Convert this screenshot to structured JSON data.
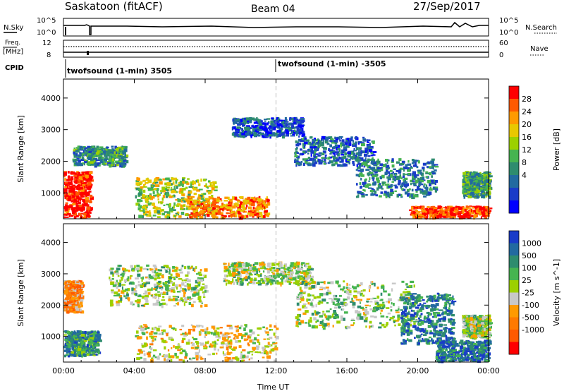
{
  "header": {
    "title": "Saskatoon (fitACF)",
    "beam": "Beam 04",
    "date": "27/Sep/2017"
  },
  "top_panels": {
    "nsky_label": "N.Sky",
    "nsky_ticks": [
      "10^5",
      "10^0"
    ],
    "nsearch_label": "N.Search",
    "nsearch_ticks": [
      "10^5",
      "10^0"
    ],
    "freq_label_1": "Freq.",
    "freq_label_2": "[MHz]",
    "freq_ticks": [
      "12",
      "8"
    ],
    "nave_label": "Nave",
    "nave_ticks": [
      "60",
      "0"
    ],
    "cpid_label": "CPID",
    "cpid_segments": [
      "twofsound (1-min) 3505",
      "twofsound (1-min) -3505"
    ]
  },
  "chart_data": [
    {
      "type": "heatmap",
      "name": "power",
      "ylabel": "Slant Range [km]",
      "xlabel": "Time UT",
      "x_ticks": [
        "00:00",
        "04:00",
        "08:00",
        "12:00",
        "16:00",
        "20:00",
        "00:00"
      ],
      "y_ticks": [
        "1000",
        "2000",
        "3000",
        "4000"
      ],
      "ylim": [
        180,
        4600
      ],
      "colorbar_label": "Power [dB]",
      "colorbar_ticks": [
        "28",
        "24",
        "20",
        "16",
        "12",
        "8",
        "4"
      ],
      "colorbar_colors": [
        "#ff0000",
        "#ff5a00",
        "#ff9a00",
        "#e8c800",
        "#9cd000",
        "#46b450",
        "#2e8c6e",
        "#226aa0",
        "#1a3cc8",
        "#0000ff"
      ],
      "bands": [
        {
          "t0": 0.0,
          "t1": 1.5,
          "r0": 250,
          "r1": 1700,
          "level": 0.95
        },
        {
          "t0": 0.5,
          "t1": 3.5,
          "r0": 1900,
          "r1": 2500,
          "level": 0.35
        },
        {
          "t0": 4.0,
          "t1": 8.5,
          "r0": 250,
          "r1": 1500,
          "level": 0.55
        },
        {
          "t0": 7.0,
          "t1": 11.5,
          "r0": 250,
          "r1": 900,
          "level": 0.8
        },
        {
          "t0": 9.5,
          "t1": 13.5,
          "r0": 2800,
          "r1": 3400,
          "level": 0.2
        },
        {
          "t0": 13.0,
          "t1": 17.5,
          "r0": 1900,
          "r1": 2800,
          "level": 0.25
        },
        {
          "t0": 16.5,
          "t1": 21.0,
          "r0": 900,
          "r1": 2100,
          "level": 0.3
        },
        {
          "t0": 19.5,
          "t1": 24.0,
          "r0": 250,
          "r1": 600,
          "level": 0.9
        },
        {
          "t0": 22.5,
          "t1": 24.0,
          "r0": 900,
          "r1": 1700,
          "level": 0.4
        }
      ]
    },
    {
      "type": "heatmap",
      "name": "velocity",
      "ylabel": "Slant Range [km]",
      "xlabel": "Time UT",
      "x_ticks": [
        "00:00",
        "04:00",
        "08:00",
        "12:00",
        "16:00",
        "20:00",
        "00:00"
      ],
      "y_ticks": [
        "1000",
        "2000",
        "3000",
        "4000"
      ],
      "ylim": [
        180,
        4600
      ],
      "colorbar_label": "Velocity [m s^-1]",
      "colorbar_ticks": [
        "1000",
        "500",
        "100",
        "25",
        "-25",
        "-100",
        "-500",
        "-1000"
      ],
      "colorbar_colors": [
        "#1a3cc8",
        "#226aa0",
        "#2e8c6e",
        "#46b450",
        "#9cd000",
        "#c8c8c8",
        "#ff9a00",
        "#ff7a00",
        "#ff5a00",
        "#ff0000"
      ],
      "bands": [
        {
          "t0": 0.0,
          "t1": 2.0,
          "r0": 400,
          "r1": 1200,
          "level": 0.75
        },
        {
          "t0": 0.0,
          "t1": 1.0,
          "r0": 1800,
          "r1": 2800,
          "level": 0.3
        },
        {
          "t0": 2.5,
          "t1": 8.0,
          "r0": 2000,
          "r1": 3300,
          "level": 0.55
        },
        {
          "t0": 4.0,
          "t1": 12.0,
          "r0": 250,
          "r1": 1400,
          "level": 0.45
        },
        {
          "t0": 9.0,
          "t1": 14.0,
          "r0": 2700,
          "r1": 3400,
          "level": 0.55
        },
        {
          "t0": 13.0,
          "t1": 20.0,
          "r0": 1300,
          "r1": 2800,
          "level": 0.55
        },
        {
          "t0": 19.0,
          "t1": 22.0,
          "r0": 800,
          "r1": 2400,
          "level": 0.8
        },
        {
          "t0": 21.0,
          "t1": 24.0,
          "r0": 250,
          "r1": 900,
          "level": 0.85
        },
        {
          "t0": 22.5,
          "t1": 24.0,
          "r0": 1000,
          "r1": 1700,
          "level": 0.55
        }
      ]
    }
  ]
}
